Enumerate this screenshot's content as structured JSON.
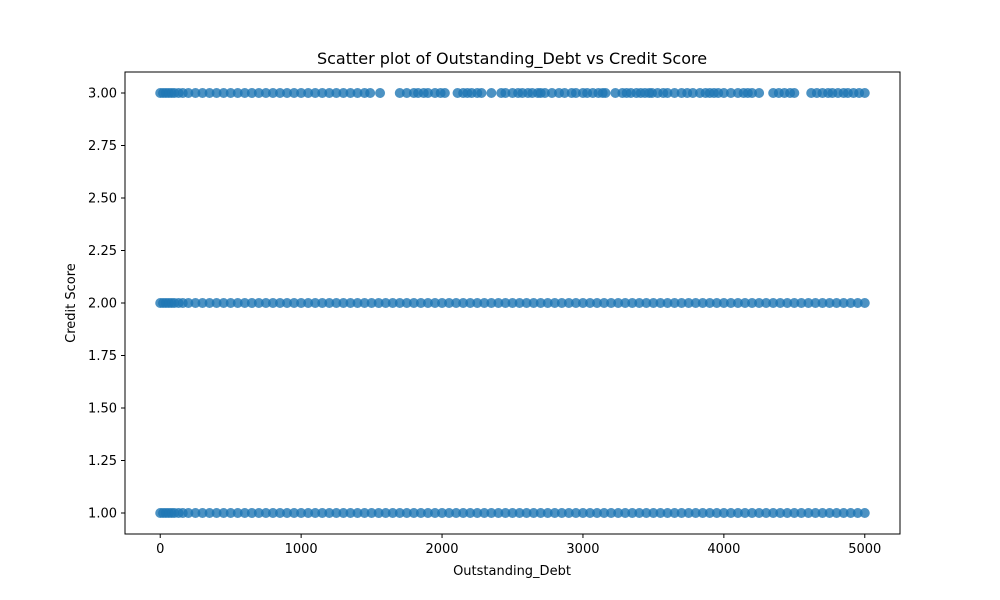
{
  "chart_data": {
    "type": "scatter",
    "title": "Scatter plot of Outstanding_Debt vs Credit Score",
    "xlabel": "Outstanding_Debt",
    "ylabel": "Credit Score",
    "xlim": [
      -250,
      5250
    ],
    "ylim": [
      0.9,
      3.1
    ],
    "xticks": [
      0,
      1000,
      2000,
      3000,
      4000,
      5000
    ],
    "xtick_labels": [
      "0",
      "1000",
      "2000",
      "3000",
      "4000",
      "5000"
    ],
    "yticks": [
      1.0,
      1.25,
      1.5,
      1.75,
      2.0,
      2.25,
      2.5,
      2.75,
      3.0
    ],
    "ytick_labels": [
      "1.00",
      "1.25",
      "1.50",
      "1.75",
      "2.00",
      "2.25",
      "2.50",
      "2.75",
      "3.00"
    ],
    "grid": false,
    "marker_color": "#1f77b4",
    "series": [
      {
        "y": 1.0,
        "x": [
          0,
          20,
          40,
          60,
          80,
          100,
          130,
          160,
          200,
          250,
          300,
          350,
          400,
          450,
          500,
          550,
          600,
          650,
          700,
          750,
          800,
          850,
          900,
          950,
          1000,
          1050,
          1100,
          1150,
          1200,
          1250,
          1300,
          1350,
          1400,
          1450,
          1500,
          1550,
          1600,
          1650,
          1700,
          1750,
          1800,
          1850,
          1900,
          1950,
          2000,
          2050,
          2100,
          2150,
          2200,
          2250,
          2300,
          2350,
          2400,
          2450,
          2500,
          2550,
          2600,
          2650,
          2700,
          2750,
          2800,
          2850,
          2900,
          2950,
          3000,
          3050,
          3100,
          3150,
          3200,
          3250,
          3300,
          3350,
          3400,
          3450,
          3500,
          3550,
          3600,
          3650,
          3700,
          3750,
          3800,
          3850,
          3900,
          3950,
          4000,
          4050,
          4100,
          4150,
          4200,
          4250,
          4300,
          4350,
          4400,
          4450,
          4500,
          4550,
          4600,
          4650,
          4700,
          4750,
          4800,
          4850,
          4900,
          4950,
          5000
        ]
      },
      {
        "y": 2.0,
        "x": [
          0,
          20,
          40,
          60,
          80,
          100,
          130,
          160,
          200,
          250,
          300,
          350,
          400,
          450,
          500,
          550,
          600,
          650,
          700,
          750,
          800,
          850,
          900,
          950,
          1000,
          1050,
          1100,
          1150,
          1200,
          1250,
          1300,
          1350,
          1400,
          1450,
          1500,
          1550,
          1600,
          1650,
          1700,
          1750,
          1800,
          1850,
          1900,
          1950,
          2000,
          2050,
          2100,
          2150,
          2200,
          2250,
          2300,
          2350,
          2400,
          2450,
          2500,
          2550,
          2600,
          2650,
          2700,
          2750,
          2800,
          2850,
          2900,
          2950,
          3000,
          3050,
          3100,
          3150,
          3200,
          3250,
          3300,
          3350,
          3400,
          3450,
          3500,
          3550,
          3600,
          3650,
          3700,
          3750,
          3800,
          3850,
          3900,
          3950,
          4000,
          4050,
          4100,
          4150,
          4200,
          4250,
          4300,
          4350,
          4400,
          4450,
          4500,
          4550,
          4600,
          4650,
          4700,
          4750,
          4800,
          4850,
          4900,
          4950,
          5000
        ]
      },
      {
        "y": 3.0,
        "x": [
          0,
          20,
          40,
          60,
          80,
          100,
          130,
          160,
          200,
          250,
          300,
          350,
          400,
          450,
          500,
          550,
          600,
          650,
          700,
          750,
          800,
          850,
          900,
          950,
          1000,
          1050,
          1100,
          1150,
          1200,
          1250,
          1300,
          1350,
          1400,
          1450,
          1490,
          1560,
          1700,
          1750,
          1800,
          1830,
          1870,
          1900,
          1950,
          1990,
          2020,
          2110,
          2150,
          2180,
          2210,
          2250,
          2280,
          2350,
          2420,
          2450,
          2500,
          2540,
          2570,
          2610,
          2640,
          2680,
          2700,
          2730,
          2780,
          2830,
          2870,
          2920,
          2950,
          3000,
          3030,
          3070,
          3110,
          3140,
          3160,
          3230,
          3280,
          3310,
          3340,
          3380,
          3410,
          3440,
          3470,
          3490,
          3530,
          3570,
          3600,
          3650,
          3700,
          3740,
          3780,
          3830,
          3870,
          3900,
          3930,
          3960,
          4000,
          4050,
          4100,
          4140,
          4170,
          4200,
          4250,
          4350,
          4390,
          4430,
          4470,
          4500,
          4620,
          4660,
          4700,
          4740,
          4770,
          4810,
          4850,
          4880,
          4920,
          4960,
          5000
        ]
      }
    ]
  }
}
